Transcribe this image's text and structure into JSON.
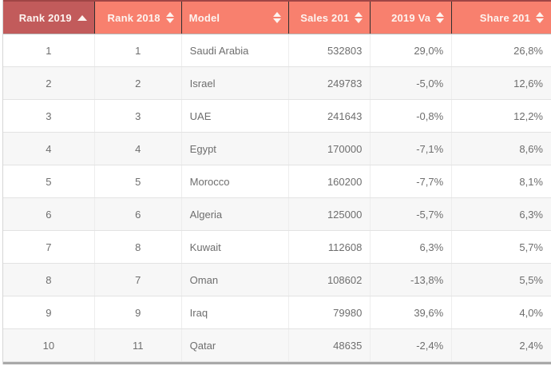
{
  "table": {
    "columns": [
      {
        "label": "Rank 2019",
        "sort": "asc"
      },
      {
        "label": "Rank 2018",
        "sort": "both"
      },
      {
        "label": "Model",
        "sort": "both"
      },
      {
        "label": "Sales 201",
        "sort": "both"
      },
      {
        "label": "2019 Va",
        "sort": "both"
      },
      {
        "label": "Share 201",
        "sort": "both"
      }
    ],
    "rows": [
      [
        "1",
        "1",
        "Saudi Arabia",
        "532803",
        "29,0%",
        "26,8%"
      ],
      [
        "2",
        "2",
        "Israel",
        "249783",
        "-5,0%",
        "12,6%"
      ],
      [
        "3",
        "3",
        "UAE",
        "241643",
        "-0,8%",
        "12,2%"
      ],
      [
        "4",
        "4",
        "Egypt",
        "170000",
        "-7,1%",
        "8,6%"
      ],
      [
        "5",
        "5",
        "Morocco",
        "160200",
        "-7,7%",
        "8,1%"
      ],
      [
        "6",
        "6",
        "Algeria",
        "125000",
        "-5,7%",
        "6,3%"
      ],
      [
        "7",
        "8",
        "Kuwait",
        "112608",
        "6,3%",
        "5,7%"
      ],
      [
        "8",
        "7",
        "Oman",
        "108602",
        "-13,8%",
        "5,5%"
      ],
      [
        "9",
        "9",
        "Iraq",
        "79980",
        "39,6%",
        "4,0%"
      ],
      [
        "10",
        "11",
        "Qatar",
        "48635",
        "-2,4%",
        "2,4%"
      ]
    ],
    "icons": {
      "sort-ascending-icon": "▲",
      "sort-icon": "⬍"
    },
    "colors": {
      "header_bg": "#f8806e",
      "header_sorted_bg": "#c25b5b",
      "header_text": "#fdf4f0",
      "top_accent_line": "#a04545",
      "row_alt_bg": "#f7f7f7",
      "row_text": "#6e6e6e"
    }
  }
}
